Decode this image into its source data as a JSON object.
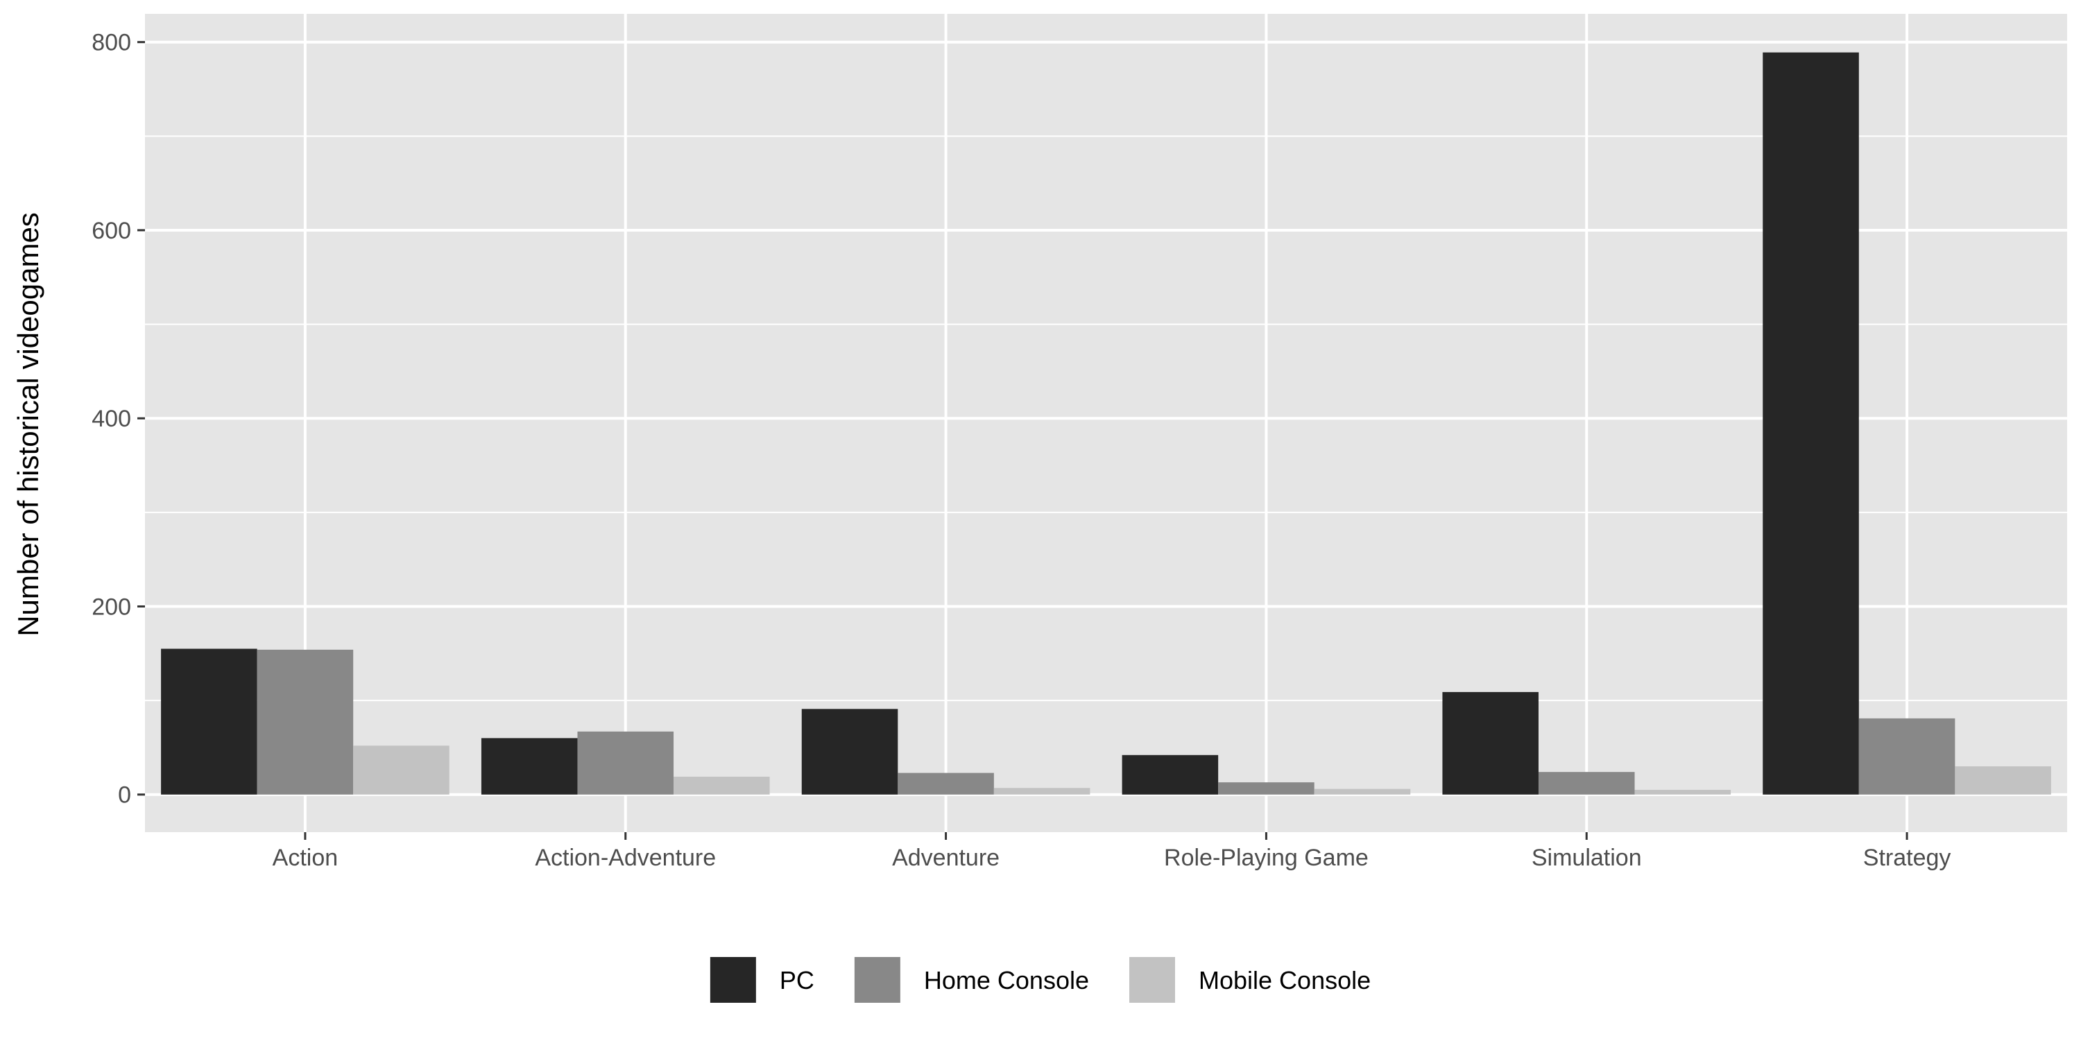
{
  "chart_data": {
    "type": "bar",
    "title": "",
    "xlabel": "",
    "ylabel": "Number of historical videogames",
    "categories": [
      "Action",
      "Action-Adventure",
      "Adventure",
      "Role-Playing Game",
      "Simulation",
      "Strategy"
    ],
    "series": [
      {
        "name": "PC",
        "color": "#262626",
        "values": [
          155,
          60,
          91,
          42,
          109,
          789
        ]
      },
      {
        "name": "Home Console",
        "color": "#888888",
        "values": [
          154,
          67,
          23,
          13,
          24,
          81
        ]
      },
      {
        "name": "Mobile Console",
        "color": "#c2c2c2",
        "values": [
          52,
          19,
          7,
          6,
          5,
          30
        ]
      }
    ],
    "ylim": [
      -40,
      830
    ],
    "yticks": [
      0,
      200,
      400,
      600,
      800
    ],
    "ytick_labels": [
      "0",
      "200",
      "400",
      "600",
      "800"
    ],
    "grid": true,
    "legend_position": "bottom",
    "colors": {
      "panel_background": "#e5e5e5",
      "gridline": "#ffffff"
    }
  }
}
